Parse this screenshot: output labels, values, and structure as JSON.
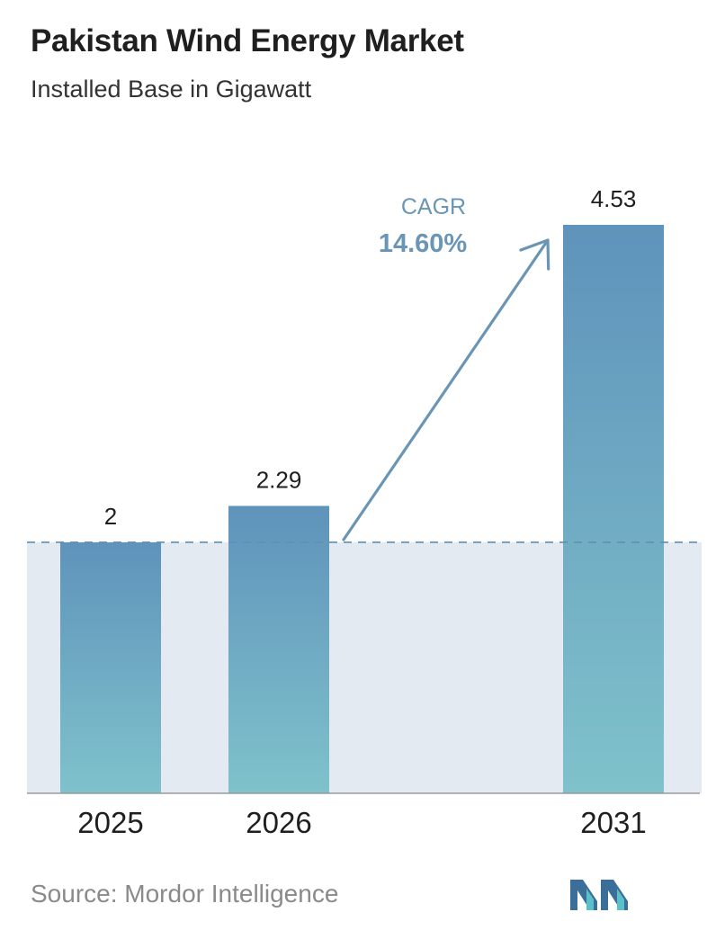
{
  "title": "Pakistan Wind Energy Market",
  "subtitle": "Installed Base in Gigawatt",
  "source": "Source:  Mordor Intelligence",
  "cagr": {
    "label": "CAGR",
    "value": "14.60%"
  },
  "colors": {
    "bar_top": "#5f93bb",
    "bar_bottom": "#7fc2cb",
    "shade": "#e3eaf2",
    "baseline_dash": "#5f8fb3",
    "arrow": "#6a95b5",
    "logo_dark": "#3b6f99",
    "logo_light": "#5cc0c8"
  },
  "chart_data": {
    "type": "bar",
    "title": "Pakistan Wind Energy Market",
    "subtitle": "Installed Base in Gigawatt",
    "categories": [
      "2025",
      "2026",
      "2031"
    ],
    "values": [
      2,
      2.29,
      4.53
    ],
    "value_labels": [
      "2",
      "2.29",
      "4.53"
    ],
    "ylim": [
      0,
      4.53
    ],
    "grid": false,
    "reference_line": 2,
    "annotation": "CAGR 14.60%"
  }
}
